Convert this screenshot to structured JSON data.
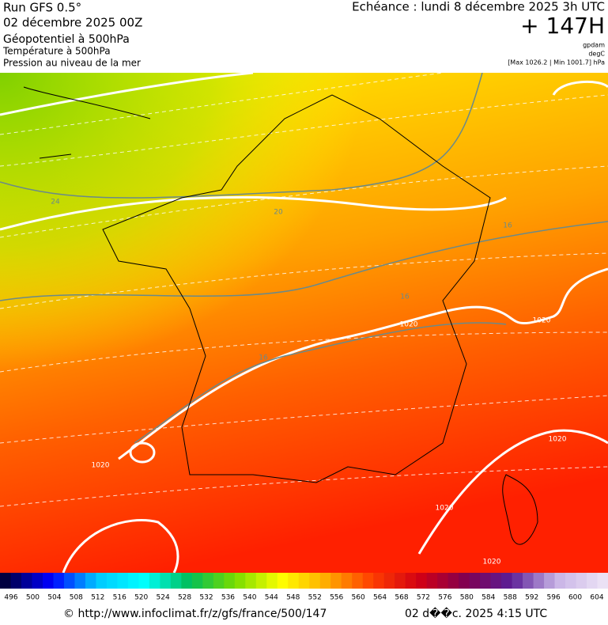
{
  "header": {
    "run": "Run GFS 0.5°",
    "date": "02 décembre 2025 00Z",
    "field1": "Géopotentiel à 500hPa",
    "field2": "Température à 500hPa",
    "field3": "Pression au niveau de la mer",
    "valid": "Echéance : lundi 8 décembre 2025 3h UTC",
    "lead": "+ 147H",
    "unit1": "gpdam",
    "unit2": "degC",
    "range": "[Max 1026.2 | Min 1001.7] hPa"
  },
  "map": {
    "contour_labels": [
      "24",
      "20",
      "16",
      "16",
      "1020",
      "1020",
      "16",
      "1020",
      "1020",
      "1020",
      "1020"
    ]
  },
  "scale": {
    "labels": [
      496,
      500,
      504,
      508,
      512,
      516,
      520,
      524,
      528,
      532,
      536,
      540,
      544,
      548,
      552,
      556,
      560,
      564,
      568,
      572,
      576,
      580,
      584,
      588,
      592,
      596,
      600,
      604
    ]
  },
  "footer": {
    "url": "© http://www.infoclimat.fr/z/gfs/france/500/147",
    "time": "02 d��c. 2025  4:15 UTC"
  }
}
